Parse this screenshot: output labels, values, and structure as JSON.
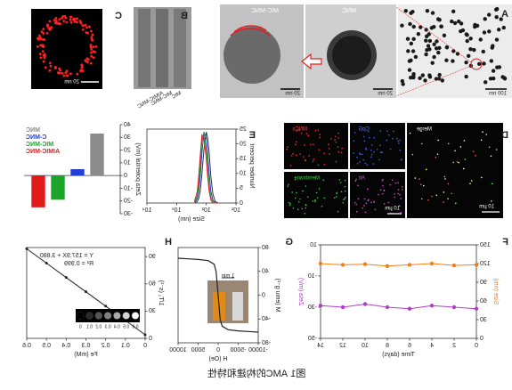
{
  "caption": "图1 AMC的构建和特性",
  "panel_labels": [
    "A",
    "B",
    "C",
    "D",
    "E",
    "F",
    "G",
    "H"
  ],
  "tem": {
    "mnc": "MNC",
    "mic_mnc": "MIC-MNC",
    "scale_a": "100 nm",
    "scale_mnc": "20 nm",
    "scale_mic": "20 nm",
    "scale_c": "20 nm"
  },
  "gel_lanes": [
    "MIC",
    "MIC-MNC",
    "AIMIC-MNC"
  ],
  "confocal": {
    "channels": [
      "Merge",
      "CpG",
      "MNCs",
      "Ab",
      "Membrane"
    ],
    "scale_merge": "10 μm",
    "scale_small": "10 μm"
  },
  "size_dist": {
    "type": "line",
    "x_label": "Size (nm)",
    "y_label": "Number percent",
    "log_x": true,
    "xlim": [
      10,
      10000
    ],
    "xticks": [
      {
        "value": 10,
        "label": "10¹"
      },
      {
        "value": 100,
        "label": "10²"
      },
      {
        "value": 1000,
        "label": "10³"
      },
      {
        "value": 10000,
        "label": "10⁴"
      }
    ],
    "ylim": [
      0,
      25
    ],
    "yticks": [
      0,
      5,
      10,
      15,
      20,
      25
    ],
    "x": [
      40,
      50,
      60,
      70,
      80,
      90,
      100,
      120,
      140,
      160,
      180,
      200,
      250
    ],
    "series": [
      {
        "name": "MNC",
        "color": "#333333",
        "values": [
          0,
          0.5,
          3,
          9,
          17,
          22,
          24,
          18,
          10,
          4,
          1.5,
          0.5,
          0
        ]
      },
      {
        "name": "C-MNC",
        "color": "#1f3fd6",
        "values": [
          0,
          0,
          1,
          4,
          10,
          17,
          22,
          24,
          17,
          9,
          4,
          1.5,
          0
        ]
      },
      {
        "name": "MIC-MNC",
        "color": "#1aa52a",
        "values": [
          0,
          0,
          0.5,
          2,
          6,
          12,
          18,
          24,
          21,
          13,
          6,
          2.5,
          0
        ]
      },
      {
        "name": "AIMIC-MNC",
        "color": "#e01b1b",
        "values": [
          0,
          0,
          0,
          1,
          4,
          9,
          15,
          22,
          23,
          16,
          9,
          4,
          0.5
        ]
      }
    ]
  },
  "zeta": {
    "type": "bar",
    "y_label": "Zeta potential (mV)",
    "categories": [
      "MNC",
      "C-MNC",
      "MIC-MNC",
      "AIMIC-MNC"
    ],
    "values": [
      33,
      5,
      -19,
      -25
    ],
    "colors": [
      "#8c8c8c",
      "#1f3fd6",
      "#1aa52a",
      "#e01b1b"
    ],
    "ylim": [
      -30,
      40
    ],
    "yticks": [
      -30,
      -20,
      -10,
      0,
      10,
      20,
      30,
      40
    ]
  },
  "stability": {
    "type": "line",
    "x_label": "Time (days)",
    "y_label": "Size (nm)",
    "y2_label": "Zeta (mV)",
    "x": [
      0,
      2,
      4,
      6,
      8,
      10,
      12,
      14
    ],
    "xlim": [
      0,
      14
    ],
    "xticks": [
      0,
      2,
      4,
      6,
      8,
      10,
      12,
      14
    ],
    "ylim": [
      0,
      150
    ],
    "yticks": [
      0,
      30,
      60,
      90,
      120,
      150
    ],
    "y2lim": [
      -50,
      10
    ],
    "y2ticks": [
      -50,
      -30,
      -10,
      10
    ],
    "series": [
      {
        "name": "Size (nm)",
        "color": "#f07f1a",
        "values": [
          118,
          117,
          120,
          118,
          116,
          119,
          118,
          120
        ]
      },
      {
        "name": "Zeta (mV)",
        "color": "#b23cc9",
        "axis": "y2",
        "values": [
          -31,
          -30,
          -29,
          -31,
          -30,
          -28,
          -30,
          -29
        ]
      }
    ]
  },
  "magnet": {
    "type": "line",
    "x_label": "H (Oe)",
    "y_label": "M (emu g⁻¹)",
    "inset_label": "1 min",
    "xlim": [
      -10000,
      10000
    ],
    "xticks": [
      -10000,
      -5000,
      0,
      5000,
      10000
    ],
    "ylim": [
      -80,
      80
    ],
    "yticks": [
      -80,
      -40,
      0,
      40,
      80
    ],
    "x": [
      -10000,
      -7500,
      -5000,
      -2500,
      -1000,
      -500,
      0,
      500,
      1000,
      2500,
      5000,
      7500,
      10000
    ],
    "values": [
      -62,
      -61,
      -60,
      -58,
      -52,
      -40,
      0,
      40,
      52,
      58,
      60,
      61,
      62
    ],
    "color": "#222222"
  },
  "relax": {
    "type": "scatter",
    "x_label": "Fe (mM)",
    "y_label": "1/T₁ (s⁻¹)",
    "equation": "Y = 157.9X + 3.880",
    "r2": "R² = 0.999",
    "xlim": [
      0,
      0.6
    ],
    "xticks": [
      0,
      0.1,
      0.2,
      0.3,
      0.4,
      0.5,
      0.6
    ],
    "ylim": [
      0,
      100
    ],
    "yticks": [
      0,
      30,
      60,
      90
    ],
    "x": [
      0,
      0.1,
      0.2,
      0.3,
      0.4,
      0.5,
      0.6
    ],
    "values": [
      3.9,
      19.7,
      35.5,
      51.3,
      67.0,
      82.8,
      98.6
    ],
    "color": "#222222",
    "phantom_labels": [
      "0.6",
      "0.5",
      "0.4",
      "0.3",
      "0.2",
      "0.1",
      "0"
    ]
  }
}
